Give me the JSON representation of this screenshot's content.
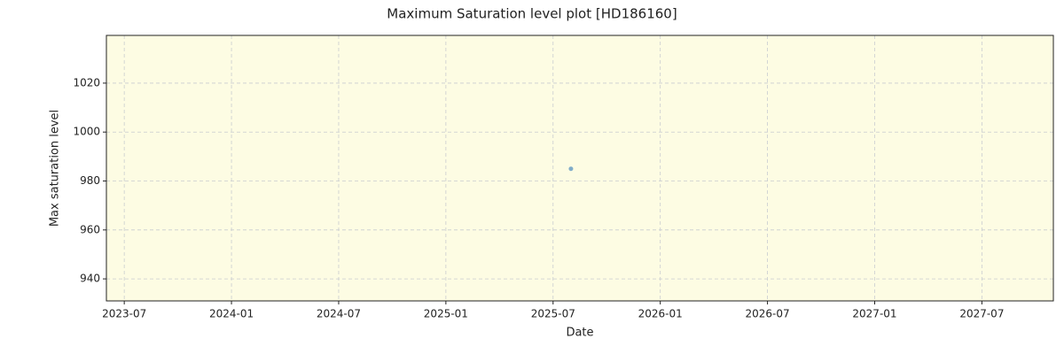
{
  "chart_data": {
    "type": "scatter",
    "title": "Maximum Saturation level plot [HD186160]",
    "x_label": "Date",
    "y_label": "Max saturation level",
    "series": [
      {
        "name": "Max saturation level",
        "color": "#6a9ec4",
        "x": [
          "2025-08"
        ],
        "values": [
          985
        ]
      }
    ],
    "xlim": [
      "2023-06",
      "2027-11"
    ],
    "xticks": [
      "2023-07",
      "2024-01",
      "2024-07",
      "2025-01",
      "2025-07",
      "2026-01",
      "2026-07",
      "2027-01",
      "2027-07"
    ],
    "ylim": [
      931,
      1039.5
    ],
    "yticks": [
      940,
      960,
      980,
      1000,
      1020
    ],
    "grid": true,
    "background": "#fdfce3"
  }
}
